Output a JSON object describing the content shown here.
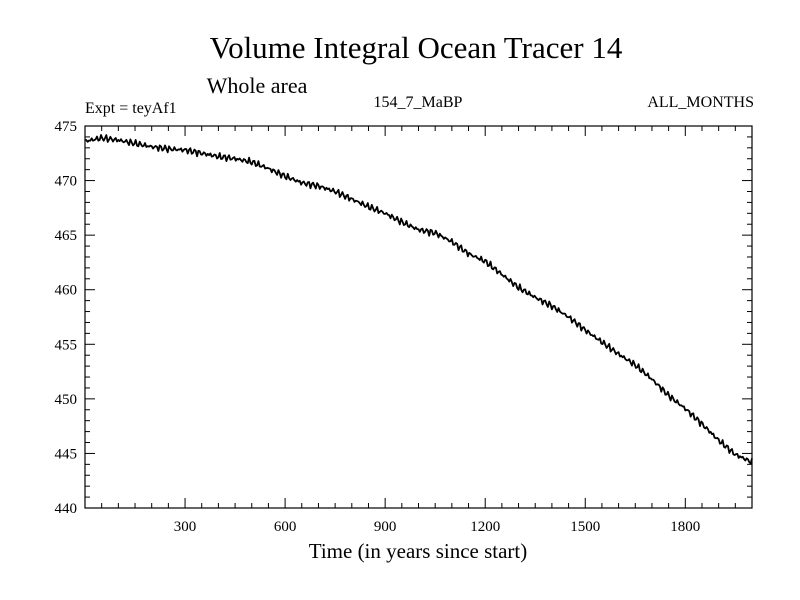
{
  "chart_data": {
    "type": "line",
    "title": "Volume Integral Ocean Tracer 14",
    "subtitle": "Whole area",
    "info_left": "Expt = teyAf1",
    "info_center": "154_7_MaBP",
    "info_right": "ALL_MONTHS",
    "xlabel": "Time (in years since start)",
    "ylabel": "",
    "xlim": [
      0,
      2000
    ],
    "ylim": [
      440,
      475
    ],
    "x_ticks": [
      300,
      600,
      900,
      1200,
      1500,
      1800
    ],
    "x_tick_labels": [
      "300",
      "600",
      "900",
      "1200",
      "1500",
      "1800"
    ],
    "y_ticks": [
      440,
      445,
      450,
      455,
      460,
      465,
      470,
      475
    ],
    "y_tick_labels": [
      "440",
      "445",
      "450",
      "455",
      "460",
      "465",
      "470",
      "475"
    ],
    "x_minor_step": 50,
    "y_minor_step": 1,
    "grid": false,
    "series": [
      {
        "name": "Tracer 14",
        "x": [
          0,
          50,
          100,
          150,
          200,
          250,
          300,
          350,
          400,
          450,
          500,
          550,
          600,
          650,
          700,
          750,
          800,
          850,
          900,
          950,
          1000,
          1050,
          1100,
          1150,
          1200,
          1250,
          1300,
          1350,
          1400,
          1450,
          1500,
          1550,
          1600,
          1650,
          1700,
          1750,
          1800,
          1850,
          1900,
          1950,
          2000
        ],
        "values": [
          473.6,
          473.9,
          473.7,
          473.4,
          473.1,
          472.9,
          472.8,
          472.5,
          472.2,
          472.0,
          471.7,
          471.1,
          470.4,
          469.8,
          469.5,
          469.0,
          468.3,
          467.6,
          467.0,
          466.2,
          465.5,
          465.2,
          464.4,
          463.3,
          462.6,
          461.4,
          460.2,
          459.3,
          458.5,
          457.5,
          456.3,
          455.2,
          454.1,
          453.1,
          451.8,
          450.3,
          449.1,
          447.7,
          446.2,
          444.9,
          444.2
        ]
      }
    ]
  }
}
